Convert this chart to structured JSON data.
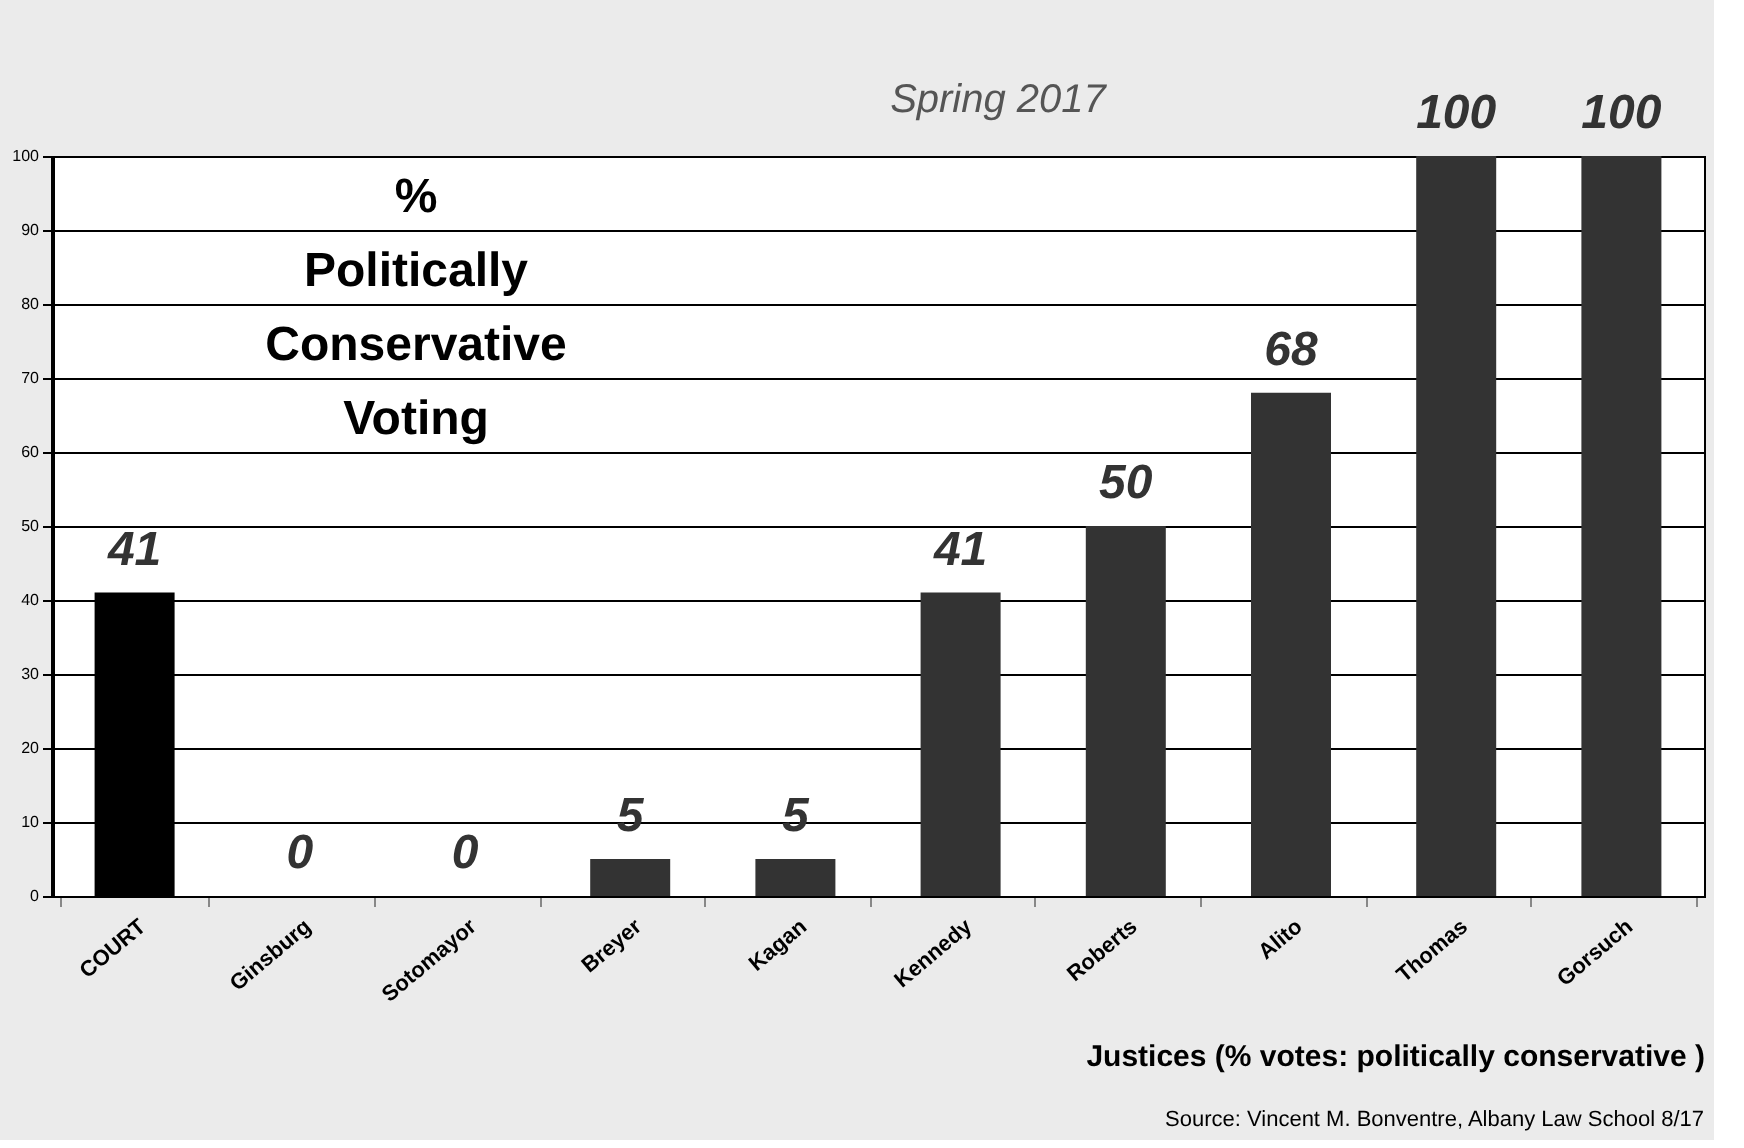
{
  "chart_data": {
    "type": "bar",
    "subtitle": "Spring 2017",
    "xlabel": "Justices (% votes: politically conservative )",
    "categories": [
      "COURT",
      "Ginsburg",
      "Sotomayor",
      "Breyer",
      "Kagan",
      "Kennedy",
      "Roberts",
      "Alito",
      "Thomas",
      "Gorsuch"
    ],
    "values": [
      41,
      0,
      0,
      5,
      5,
      41,
      50,
      68,
      100,
      100
    ],
    "colors": [
      "#000000",
      "#333333",
      "#333333",
      "#333333",
      "#333333",
      "#333333",
      "#333333",
      "#333333",
      "#333333",
      "#333333"
    ],
    "ylim": [
      0,
      100
    ],
    "yticks": [
      0,
      10,
      20,
      30,
      40,
      50,
      60,
      70,
      80,
      90,
      100
    ],
    "grid": "y",
    "data_labels": true,
    "annotations": [
      "% Politically Conservative Voting",
      "Source: Vincent M. Bonventre, Albany Law School  8/17"
    ]
  }
}
